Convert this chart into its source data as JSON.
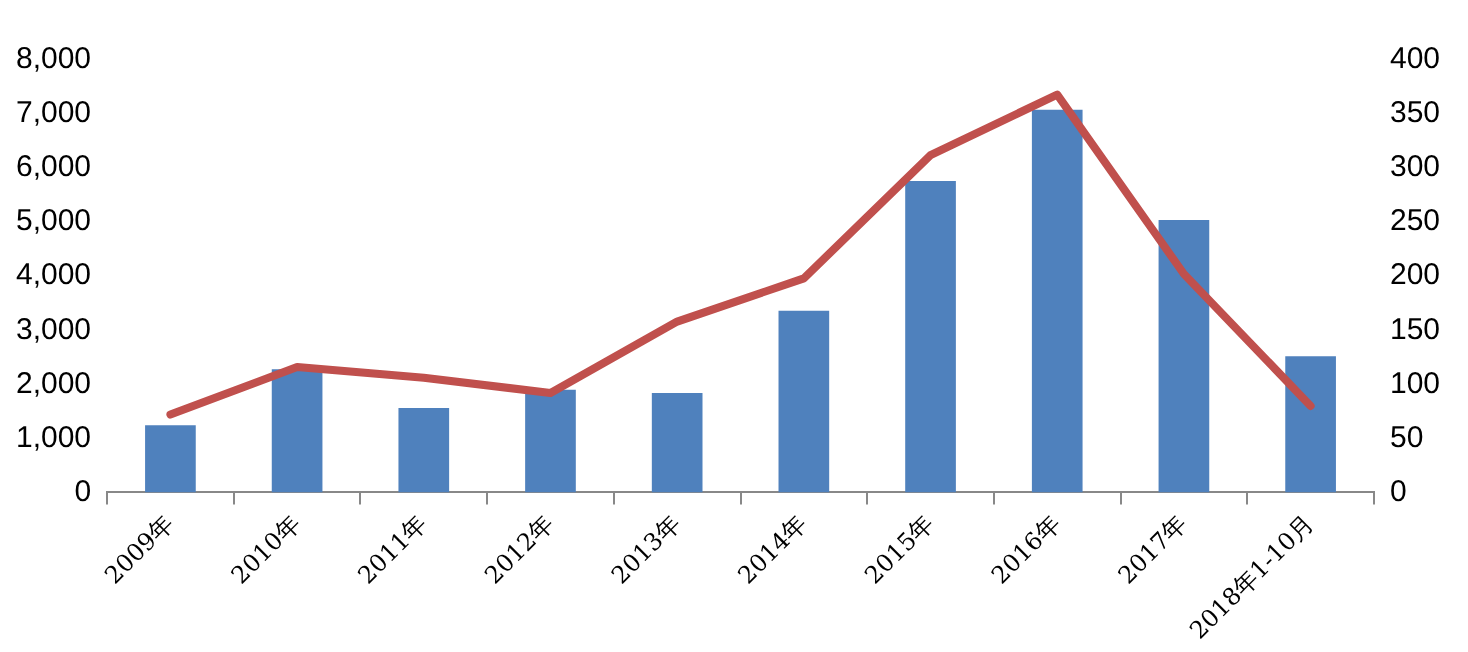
{
  "chart_data": {
    "type": "bar",
    "categories": [
      "2009年",
      "2010年",
      "2011年",
      "2012年",
      "2013年",
      "2014年",
      "2015年",
      "2016年",
      "2017年",
      "2018年1-10月"
    ],
    "series": [
      {
        "color": "#4f81bd",
        "values": [
          1240,
          2280,
          1560,
          1900,
          1840,
          3360,
          5760,
          7080,
          5040,
          2520
        ]
      },
      {
        "type": "line",
        "axis": "y2",
        "color": "#c0504d",
        "values": [
          72,
          116,
          106,
          92,
          158,
          198,
          312,
          368,
          202,
          80
        ]
      }
    ],
    "ylim": [
      0,
      8000
    ],
    "yticks": [
      0,
      {
        "value": 1000,
        "label": "1,000"
      },
      {
        "value": 2000,
        "label": "2,000"
      },
      {
        "value": 3000,
        "label": "3,000"
      },
      {
        "value": 4000,
        "label": "4,000"
      },
      {
        "value": 5000,
        "label": "5,000"
      },
      {
        "value": 6000,
        "label": "6,000"
      },
      {
        "value": 7000,
        "label": "7,000"
      },
      {
        "value": 8000,
        "label": "8,000"
      }
    ],
    "y2lim": [
      0,
      400
    ],
    "y2ticks": [
      0,
      50,
      100,
      150,
      200,
      250,
      300,
      350,
      400
    ],
    "grid": false,
    "legend": false,
    "marker": "none",
    "line_style": "solid"
  }
}
